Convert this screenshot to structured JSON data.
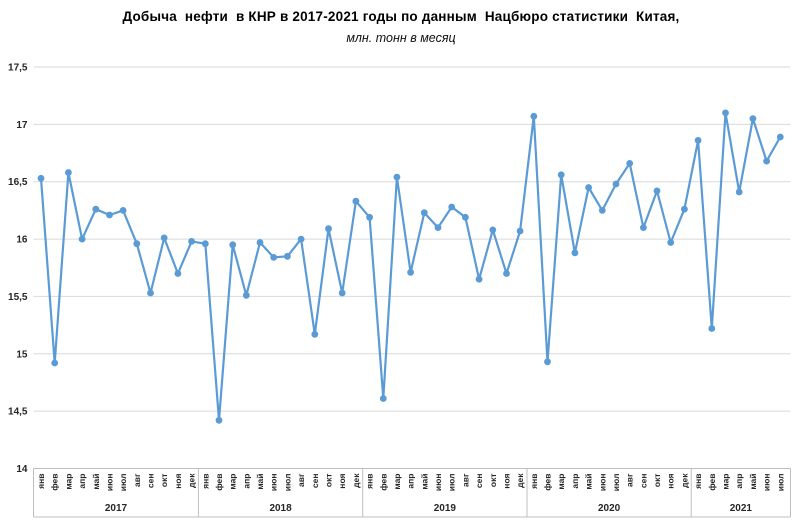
{
  "chart_data": {
    "type": "line",
    "title": "Добыча  нефти  в КНР в 2017-2021 годы по данным  Нацбюро статистики  Китая,",
    "subtitle": "млн. тонн в месяц",
    "ylim": [
      14,
      17.5
    ],
    "ytick_step": 0.5,
    "ytick_labels": [
      "14",
      "14,5",
      "15",
      "15,5",
      "16",
      "16,5",
      "17",
      "17,5"
    ],
    "grid": true,
    "legend": "none",
    "month_labels": [
      "янв",
      "фев",
      "мар",
      "апр",
      "май",
      "июн",
      "июл",
      "авг",
      "сен",
      "окт",
      "ноя",
      "дек"
    ],
    "series": [
      {
        "name": "2017",
        "values": [
          16.53,
          14.92,
          16.58,
          16.0,
          16.26,
          16.21,
          16.25,
          15.96,
          15.53,
          16.01,
          15.7,
          15.98
        ]
      },
      {
        "name": "2018",
        "values": [
          15.96,
          14.42,
          15.95,
          15.51,
          15.97,
          15.84,
          15.85,
          16.0,
          15.17,
          16.09,
          15.53,
          16.33
        ]
      },
      {
        "name": "2019",
        "values": [
          16.19,
          14.61,
          16.54,
          15.71,
          16.23,
          16.1,
          16.28,
          16.19,
          15.65,
          16.08,
          15.7,
          16.07
        ]
      },
      {
        "name": "2020",
        "values": [
          17.07,
          14.93,
          16.56,
          15.88,
          16.45,
          16.25,
          16.48,
          16.66,
          16.1,
          16.42,
          15.97,
          16.26
        ]
      },
      {
        "name": "2021",
        "values": [
          16.86,
          15.22,
          17.1,
          16.41,
          17.05,
          16.68,
          16.89
        ]
      }
    ],
    "colors": {
      "line": "#5b9bd5",
      "marker": "#5b9bd5",
      "gridline": "#d9d9d9",
      "axis_line": "#bfbfbf",
      "tick_label": "#262626",
      "year_label": "#262626"
    }
  }
}
